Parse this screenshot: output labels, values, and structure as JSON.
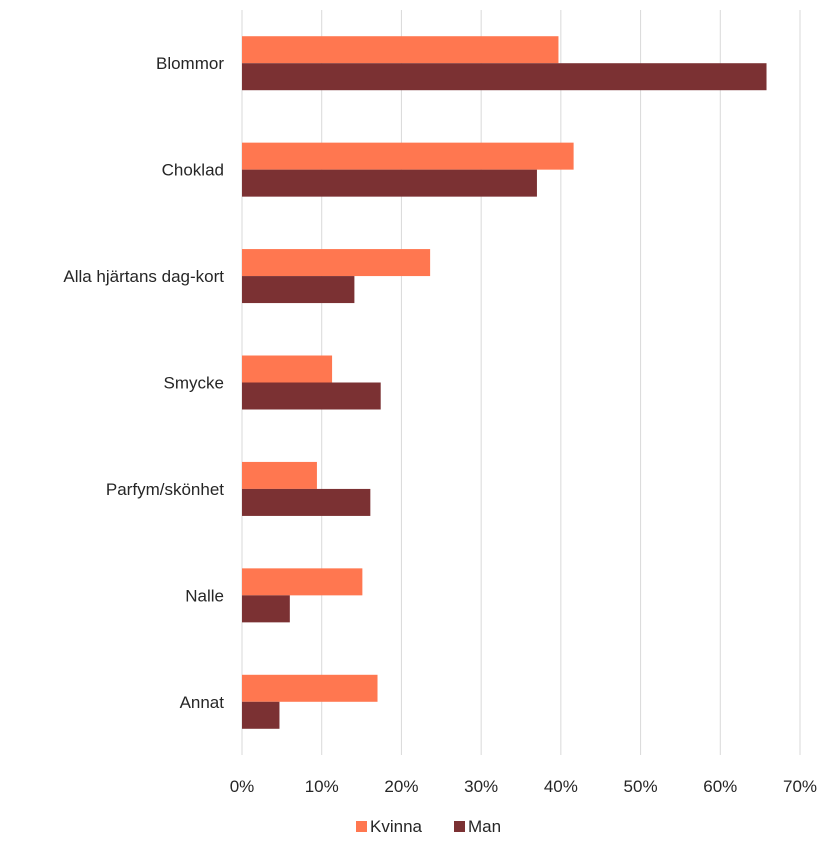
{
  "chart_data": {
    "type": "bar",
    "orientation": "horizontal",
    "categories": [
      "Blommor",
      "Choklad",
      "Alla hjärtans dag-kort",
      "Smycke",
      "Parfym/skönhet",
      "Nalle",
      "Annat"
    ],
    "series": [
      {
        "name": "Kvinna",
        "color": "#ff7750",
        "values": [
          39.7,
          41.6,
          23.6,
          11.3,
          9.4,
          15.1,
          17.0
        ]
      },
      {
        "name": "Man",
        "color": "#7b3133",
        "values": [
          65.8,
          37.0,
          14.1,
          17.4,
          16.1,
          6.0,
          4.7
        ]
      }
    ],
    "x_ticks": [
      "0%",
      "10%",
      "20%",
      "30%",
      "40%",
      "50%",
      "60%",
      "70%"
    ],
    "xlim": [
      0,
      70
    ],
    "grid": true,
    "legend_position": "bottom"
  }
}
